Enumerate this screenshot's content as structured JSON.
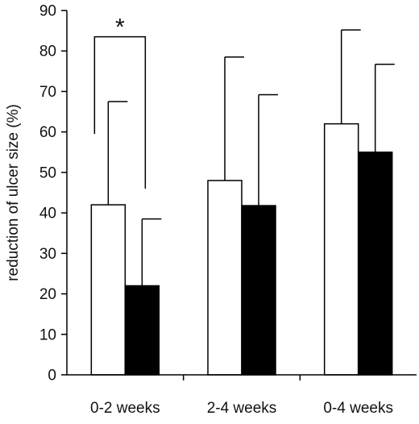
{
  "chart_data": {
    "type": "bar",
    "title": "",
    "xlabel": "",
    "ylabel": "reduction of ulcer size (%)",
    "ylim": [
      0,
      90
    ],
    "yticks": [
      0,
      10,
      20,
      30,
      40,
      50,
      60,
      70,
      80,
      90
    ],
    "grid": false,
    "legend": "none",
    "categories": [
      "0-2 weeks",
      "2-4 weeks",
      "0-4 weeks"
    ],
    "series": [
      {
        "values": [
          42,
          48,
          62
        ],
        "error_upper": [
          67.5,
          78.5,
          85.2
        ],
        "color": "#ffffff"
      },
      {
        "values": [
          22,
          41.8,
          55
        ],
        "error_upper": [
          38.5,
          69.2,
          76.7
        ],
        "color": "#000000"
      }
    ],
    "annotations": [
      {
        "text": "*",
        "category": "0-2 weeks",
        "bracket_y": 83.5
      }
    ]
  }
}
